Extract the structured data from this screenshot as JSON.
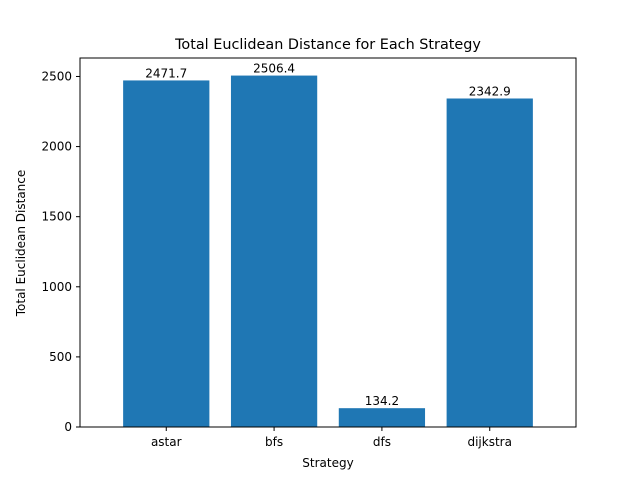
{
  "chart_data": {
    "type": "bar",
    "title": "Total Euclidean Distance for Each Strategy",
    "xlabel": "Strategy",
    "ylabel": "Total Euclidean Distance",
    "categories": [
      "astar",
      "bfs",
      "dfs",
      "dijkstra"
    ],
    "values": [
      2471.7,
      2506.4,
      134.2,
      2342.9
    ],
    "value_labels": [
      "2471.7",
      "2506.4",
      "134.2",
      "2342.9"
    ],
    "ylim": [
      0,
      2506.4
    ],
    "yticks": [
      0,
      500,
      1000,
      1500,
      2000,
      2500
    ],
    "ytick_labels": [
      "0",
      "500",
      "1000",
      "1500",
      "2000",
      "2500"
    ],
    "grid": false,
    "bar_color": "#1f77b4"
  }
}
